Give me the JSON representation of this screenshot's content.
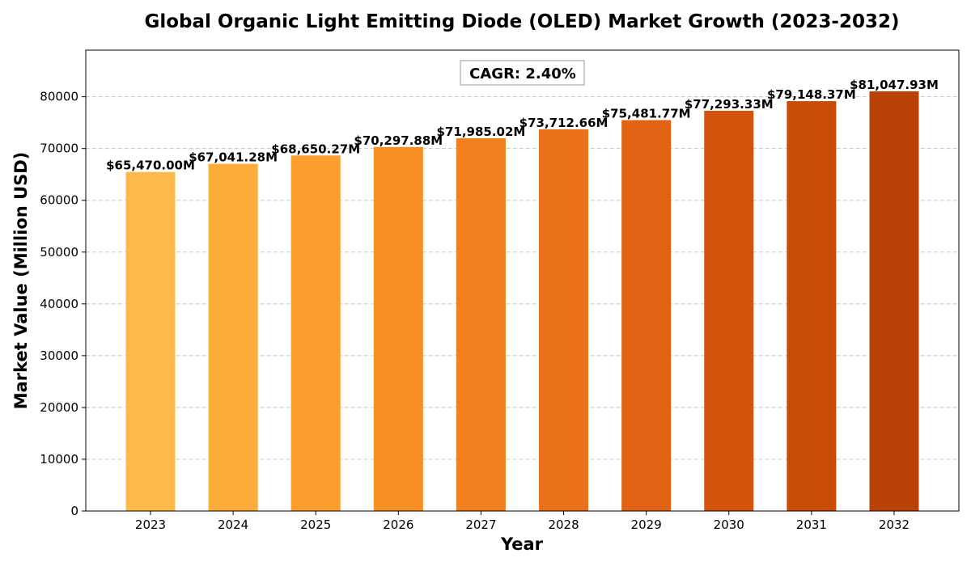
{
  "chart_data": {
    "type": "bar",
    "title": "Global Organic Light Emitting Diode (OLED) Market Growth (2023-2032)",
    "xlabel": "Year",
    "ylabel": "Market Value (Million USD)",
    "categories": [
      "2023",
      "2024",
      "2025",
      "2026",
      "2027",
      "2028",
      "2029",
      "2030",
      "2031",
      "2032"
    ],
    "values": [
      65470.0,
      67041.28,
      68650.27,
      70297.88,
      71985.02,
      73712.66,
      75481.77,
      77293.33,
      79148.37,
      81047.93
    ],
    "data_labels": [
      "$65,470.00M",
      "$67,041.28M",
      "$68,650.27M",
      "$70,297.88M",
      "$71,985.02M",
      "$73,712.66M",
      "$75,481.77M",
      "$77,293.33M",
      "$79,148.37M",
      "$81,047.93M"
    ],
    "bar_colors": [
      "#fdb94a",
      "#fdab39",
      "#fc9e2d",
      "#f78f24",
      "#f2801f",
      "#ea711a",
      "#e06314",
      "#d4540c",
      "#c84b04",
      "#b94306"
    ],
    "ylim": [
      0,
      89000
    ],
    "yticks": [
      0,
      10000,
      20000,
      30000,
      40000,
      50000,
      60000,
      70000,
      80000
    ],
    "grid": true,
    "annotation": "CAGR: 2.40%"
  }
}
